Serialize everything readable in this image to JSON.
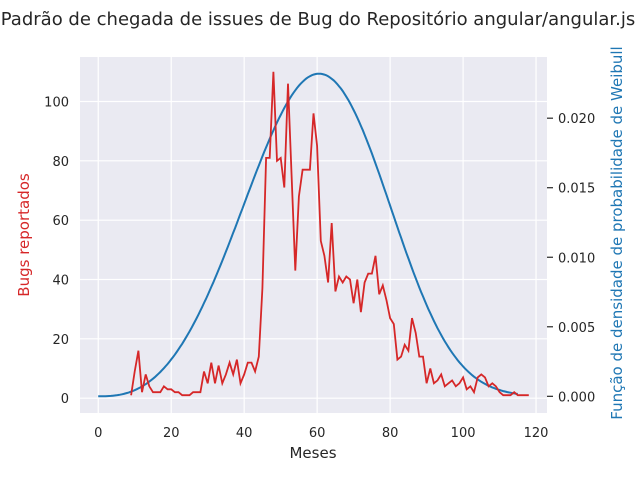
{
  "chart_data": {
    "type": "line",
    "title": "Padrão de chegada de issues de Bug do Repositório angular/angular.js",
    "xlabel": "Meses",
    "ylabel_left": "Bugs reportados",
    "ylabel_right": "Função de densidade de probabilidade de Weibull",
    "xlim": [
      -5,
      123
    ],
    "ylim_left": [
      -5,
      115
    ],
    "ylim_right": [
      -0.0012,
      0.0244
    ],
    "x_ticks": [
      0,
      20,
      40,
      60,
      80,
      100,
      120
    ],
    "y_ticks_left": [
      0,
      20,
      40,
      60,
      80,
      100
    ],
    "y_ticks_right": [
      "0.000",
      "0.005",
      "0.010",
      "0.015",
      "0.020"
    ],
    "y_ticks_right_values": [
      0,
      0.005,
      0.01,
      0.015,
      0.02
    ],
    "grid": true,
    "colors": {
      "bugs": "#d62728",
      "weibull": "#1f77b4",
      "plot_bg": "#eaeaf2",
      "grid": "#ffffff",
      "text": "#262626"
    },
    "series": [
      {
        "axis": "left",
        "x": [
          9,
          10,
          11,
          12,
          13,
          14,
          15,
          16,
          17,
          18,
          19,
          20,
          21,
          22,
          23,
          24,
          25,
          26,
          27,
          28,
          29,
          30,
          31,
          32,
          33,
          34,
          35,
          36,
          37,
          38,
          39,
          40,
          41,
          42,
          43,
          44,
          45,
          46,
          47,
          48,
          49,
          50,
          51,
          52,
          53,
          54,
          55,
          56,
          57,
          58,
          59,
          60,
          61,
          62,
          63,
          64,
          65,
          66,
          67,
          68,
          69,
          70,
          71,
          72,
          73,
          74,
          75,
          76,
          77,
          78,
          79,
          80,
          81,
          82,
          83,
          84,
          85,
          86,
          87,
          88,
          89,
          90,
          91,
          92,
          93,
          94,
          95,
          96,
          97,
          98,
          99,
          100,
          101,
          102,
          103,
          104,
          105,
          106,
          107,
          108,
          109,
          110,
          111,
          112,
          113,
          114,
          115,
          116,
          117,
          118
        ],
        "values": [
          1,
          9,
          16,
          2,
          8,
          4,
          2,
          2,
          2,
          4,
          3,
          3,
          2,
          2,
          1,
          1,
          1,
          2,
          2,
          2,
          9,
          5,
          12,
          5,
          11,
          5,
          8,
          12,
          8,
          13,
          5,
          8,
          12,
          12,
          9,
          14,
          37,
          81,
          81,
          110,
          80,
          81,
          71,
          106,
          75,
          43,
          68,
          77,
          77,
          77,
          96,
          85,
          53,
          48,
          39,
          59,
          36,
          41,
          39,
          41,
          40,
          32,
          40,
          29,
          39,
          42,
          42,
          48,
          35,
          38,
          33,
          27,
          25,
          13,
          14,
          18,
          16,
          27,
          22,
          14,
          14,
          5,
          10,
          5,
          6,
          8,
          4,
          5,
          6,
          4,
          5,
          7,
          3,
          4,
          2,
          7,
          8,
          7,
          4,
          5,
          4,
          2,
          1,
          1,
          1,
          2,
          1,
          1,
          1,
          1
        ]
      },
      {
        "axis": "right",
        "type": "weibull_pdf",
        "x_range": [
          0,
          115
        ],
        "peak_x": 60.5,
        "peak_density": 0.0232,
        "spread": 18.8
      }
    ]
  }
}
